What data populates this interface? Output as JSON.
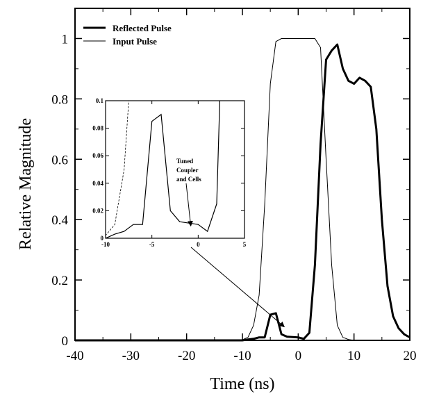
{
  "chart_data": {
    "type": "line",
    "xlabel": "Time (ns)",
    "ylabel": "Relative Magnitude",
    "xlim": [
      -40,
      20
    ],
    "ylim": [
      0,
      1.1
    ],
    "xticks": [
      -40,
      -30,
      -20,
      -10,
      0,
      10,
      20
    ],
    "xtick_labels": [
      "-40",
      "-30",
      "-20",
      "-10",
      "0",
      "10",
      "20"
    ],
    "yticks": [
      0,
      0.2,
      0.4,
      0.6,
      0.8,
      1
    ],
    "ytick_labels": [
      "0",
      "0.2",
      "0.4",
      "0.6",
      "0.8",
      "1"
    ],
    "legend_position": "top-left",
    "grid": false,
    "series": [
      {
        "name": "Reflected Pulse",
        "color": "#000000",
        "style": "thick",
        "x": [
          -40,
          -10,
          -9,
          -8,
          -7,
          -6,
          -5,
          -4,
          -3,
          -2,
          -1,
          0,
          1,
          2,
          3,
          4,
          5,
          6,
          7,
          8,
          9,
          10,
          11,
          12,
          13,
          14,
          15,
          16,
          17,
          18,
          19,
          20
        ],
        "y": [
          0,
          0,
          0.003,
          0.005,
          0.01,
          0.01,
          0.085,
          0.09,
          0.02,
          0.012,
          0.011,
          0.01,
          0.005,
          0.025,
          0.25,
          0.65,
          0.93,
          0.96,
          0.98,
          0.9,
          0.86,
          0.85,
          0.87,
          0.86,
          0.84,
          0.7,
          0.4,
          0.18,
          0.08,
          0.04,
          0.02,
          0.01
        ]
      },
      {
        "name": "Input Pulse",
        "color": "#000000",
        "style": "thin",
        "x": [
          -40,
          -11,
          -10,
          -9,
          -8,
          -7,
          -6,
          -5,
          -4,
          -3,
          -2,
          -1,
          0,
          1,
          2,
          3,
          4,
          5,
          6,
          7,
          8,
          9,
          10,
          20
        ],
        "y": [
          0,
          0,
          0.002,
          0.01,
          0.05,
          0.15,
          0.45,
          0.85,
          0.99,
          1,
          1,
          1,
          1,
          1,
          1,
          1,
          0.97,
          0.6,
          0.25,
          0.05,
          0.01,
          0.003,
          0,
          0
        ]
      }
    ],
    "inset": {
      "xlim": [
        -10,
        5
      ],
      "ylim": [
        0,
        0.1
      ],
      "xticks": [
        -10,
        -5,
        0,
        5
      ],
      "xtick_labels": [
        "-10",
        "-5",
        "0",
        "5"
      ],
      "yticks": [
        0,
        0.02,
        0.04,
        0.06,
        0.08,
        0.1
      ],
      "ytick_labels": [
        "0",
        "0.02",
        "0.04",
        "0.06",
        "0.08",
        "0.1"
      ],
      "annotation": {
        "lines": [
          "Tuned",
          "Coupler",
          "and Cells"
        ],
        "target": [
          -0.8,
          0.009
        ]
      }
    }
  }
}
